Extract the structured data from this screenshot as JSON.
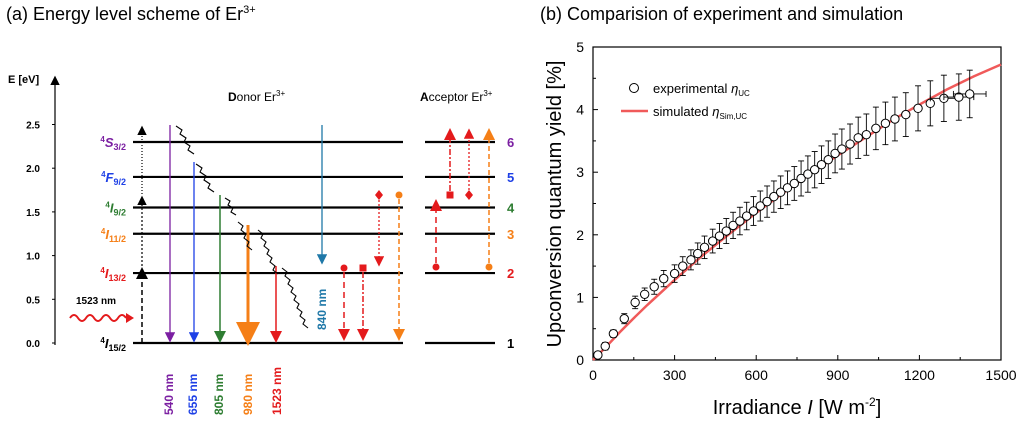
{
  "figure": {
    "panel_a_title": "(a) Energy level scheme of Er",
    "panel_a_title_sup": "3+",
    "panel_b_title": "(b) Comparision of experiment and simulation"
  },
  "energy_diagram": {
    "yaxis_label": "E [eV]",
    "yticks": [
      "0.0",
      "0.5",
      "1.0",
      "1.5",
      "2.0",
      "2.5"
    ],
    "donor_label_bold": "D",
    "donor_label_rest": "onor Er",
    "acceptor_label_bold": "A",
    "acceptor_label_rest": "cceptor Er",
    "ion_sup": "3+",
    "levels": [
      {
        "num": "1",
        "term_sup": "4",
        "term_main": "I",
        "term_sub": "15/2",
        "color": "#000000",
        "energy_ev": 0.0
      },
      {
        "num": "2",
        "term_sup": "4",
        "term_main": "I",
        "term_sub": "13/2",
        "color": "#e41a1c",
        "energy_ev": 0.8
      },
      {
        "num": "3",
        "term_sup": "4",
        "term_main": "I",
        "term_sub": "11/2",
        "color": "#f57f17",
        "energy_ev": 1.25
      },
      {
        "num": "4",
        "term_sup": "4",
        "term_main": "I",
        "term_sub": "9/2",
        "color": "#2e7d32",
        "energy_ev": 1.55
      },
      {
        "num": "5",
        "term_sup": "4",
        "term_main": "F",
        "term_sub": "9/2",
        "color": "#1e40e6",
        "energy_ev": 1.9
      },
      {
        "num": "6",
        "term_sup": "4",
        "term_main": "S",
        "term_sub": "3/2",
        "color": "#7b1fa2",
        "energy_ev": 2.3
      }
    ],
    "excitation_label": "1523 nm",
    "emissions": [
      {
        "label": "540 nm",
        "color": "#7b1fa2"
      },
      {
        "label": "655 nm",
        "color": "#1e40e6"
      },
      {
        "label": "805 nm",
        "color": "#2e7d32"
      },
      {
        "label": "980 nm",
        "color": "#f57f17"
      },
      {
        "label": "1523 nm",
        "color": "#e41a1c"
      },
      {
        "label": "840 nm",
        "color": "#1f78a8"
      }
    ]
  },
  "chart_data": {
    "type": "scatter",
    "xlabel": "Irradiance",
    "xlabel_var": "I",
    "xlabel_unit": "[W m",
    "xlabel_exp": "-2",
    "ylabel": "Upconversion quantum yield [%]",
    "xlim": [
      0,
      1500
    ],
    "ylim": [
      0,
      5
    ],
    "xticks": [
      0,
      300,
      600,
      900,
      1200,
      1500
    ],
    "yticks": [
      0,
      1,
      2,
      3,
      4,
      5
    ],
    "legend_position": "top-left",
    "series": [
      {
        "name": "experimental",
        "name_sub": "UC",
        "marker": "open-circle",
        "x": [
          18,
          45,
          75,
          115,
          155,
          190,
          225,
          260,
          300,
          330,
          360,
          385,
          410,
          440,
          465,
          490,
          515,
          540,
          565,
          590,
          615,
          640,
          665,
          690,
          715,
          740,
          765,
          790,
          815,
          840,
          865,
          890,
          915,
          945,
          975,
          1005,
          1040,
          1075,
          1110,
          1150,
          1195,
          1240,
          1290,
          1345,
          1385
        ],
        "y": [
          0.08,
          0.22,
          0.42,
          0.66,
          0.92,
          1.05,
          1.17,
          1.3,
          1.38,
          1.5,
          1.6,
          1.7,
          1.8,
          1.9,
          1.98,
          2.06,
          2.15,
          2.22,
          2.3,
          2.38,
          2.46,
          2.53,
          2.61,
          2.68,
          2.75,
          2.82,
          2.9,
          2.97,
          3.04,
          3.12,
          3.2,
          3.3,
          3.37,
          3.45,
          3.55,
          3.6,
          3.7,
          3.78,
          3.85,
          3.92,
          4.02,
          4.1,
          4.18,
          4.2,
          4.25
        ],
        "yerr": [
          0.04,
          0.06,
          0.06,
          0.08,
          0.1,
          0.1,
          0.12,
          0.13,
          0.14,
          0.15,
          0.16,
          0.17,
          0.18,
          0.19,
          0.2,
          0.2,
          0.21,
          0.22,
          0.22,
          0.23,
          0.24,
          0.25,
          0.25,
          0.26,
          0.27,
          0.27,
          0.28,
          0.29,
          0.29,
          0.3,
          0.3,
          0.31,
          0.32,
          0.32,
          0.33,
          0.33,
          0.34,
          0.34,
          0.35,
          0.35,
          0.36,
          0.36,
          0.37,
          0.37,
          0.38
        ],
        "xerr": [
          0,
          0,
          0,
          0,
          0,
          0,
          0,
          0,
          0,
          0,
          0,
          0,
          0,
          0,
          0,
          0,
          0,
          0,
          0,
          0,
          0,
          0,
          0,
          0,
          0,
          0,
          0,
          0,
          0,
          0,
          0,
          0,
          0,
          0,
          0,
          0,
          0,
          0,
          0,
          0,
          0,
          0,
          50,
          55,
          60
        ],
        "color": "#000000"
      },
      {
        "name": "simulated",
        "name_sub": "Sim,UC",
        "marker": "line",
        "x": [
          0,
          50,
          100,
          150,
          200,
          250,
          300,
          400,
          500,
          600,
          700,
          800,
          900,
          1000,
          1100,
          1200,
          1300,
          1400,
          1500
        ],
        "y": [
          0.0,
          0.22,
          0.45,
          0.67,
          0.88,
          1.08,
          1.28,
          1.66,
          2.01,
          2.35,
          2.67,
          2.98,
          3.27,
          3.55,
          3.83,
          4.08,
          4.32,
          4.53,
          4.72
        ],
        "color": "#f05a5a"
      }
    ]
  }
}
